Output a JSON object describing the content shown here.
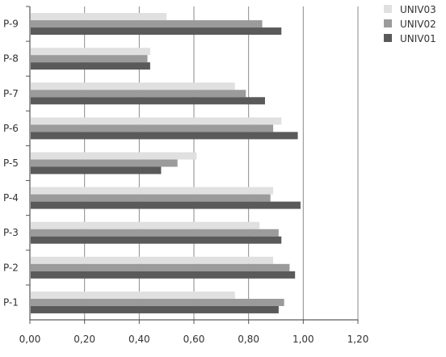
{
  "chart_data": {
    "type": "bar",
    "orientation": "horizontal",
    "categories": [
      "P-1",
      "P-2",
      "P-3",
      "P-4",
      "P-5",
      "P-6",
      "P-7",
      "P-8",
      "P-9"
    ],
    "series": [
      {
        "name": "UNIV03",
        "color": "#e0e0e0",
        "values": [
          0.75,
          0.89,
          0.84,
          0.89,
          0.61,
          0.92,
          0.75,
          0.44,
          0.5
        ]
      },
      {
        "name": "UNIV02",
        "color": "#9b9b9b",
        "values": [
          0.93,
          0.95,
          0.91,
          0.88,
          0.54,
          0.89,
          0.79,
          0.43,
          0.85
        ]
      },
      {
        "name": "UNIV01",
        "color": "#5a5a5a",
        "values": [
          0.91,
          0.97,
          0.92,
          0.99,
          0.48,
          0.98,
          0.86,
          0.44,
          0.92
        ]
      }
    ],
    "xlim": [
      0,
      1.2
    ],
    "xticks": [
      "0,00",
      "0,20",
      "0,40",
      "0,60",
      "0,80",
      "1,00",
      "1,20"
    ],
    "grid": true,
    "legend": "top-right",
    "title": "",
    "xlabel": "",
    "ylabel": ""
  }
}
